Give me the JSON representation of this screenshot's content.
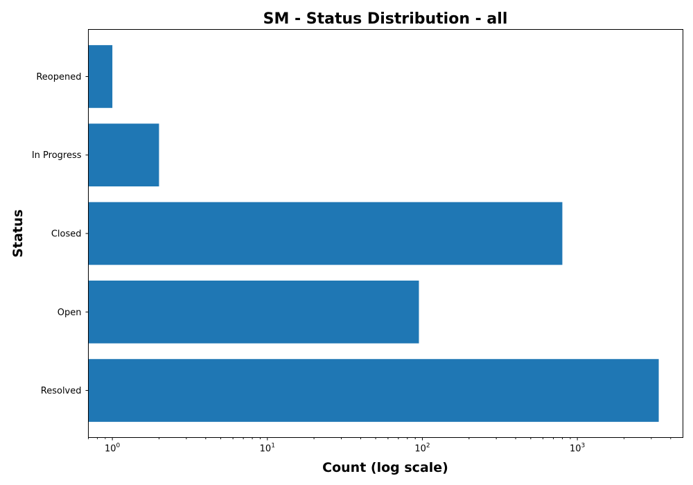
{
  "chart_data": {
    "type": "bar",
    "orientation": "horizontal",
    "title": "SM - Status Distribution - all",
    "xlabel": "Count (log scale)",
    "ylabel": "Status",
    "x_scale": "log",
    "xlim": [
      0.7,
      4800
    ],
    "categories": [
      "Resolved",
      "Open",
      "Closed",
      "In Progress",
      "Reopened"
    ],
    "values": [
      3350,
      95,
      800,
      2,
      1
    ],
    "bar_color": "#1f77b4",
    "x_ticks": [
      {
        "value": 1,
        "base": "10",
        "exp": "0"
      },
      {
        "value": 10,
        "base": "10",
        "exp": "1"
      },
      {
        "value": 100,
        "base": "10",
        "exp": "2"
      },
      {
        "value": 1000,
        "base": "10",
        "exp": "3"
      }
    ],
    "grid": false,
    "legend": "none"
  }
}
